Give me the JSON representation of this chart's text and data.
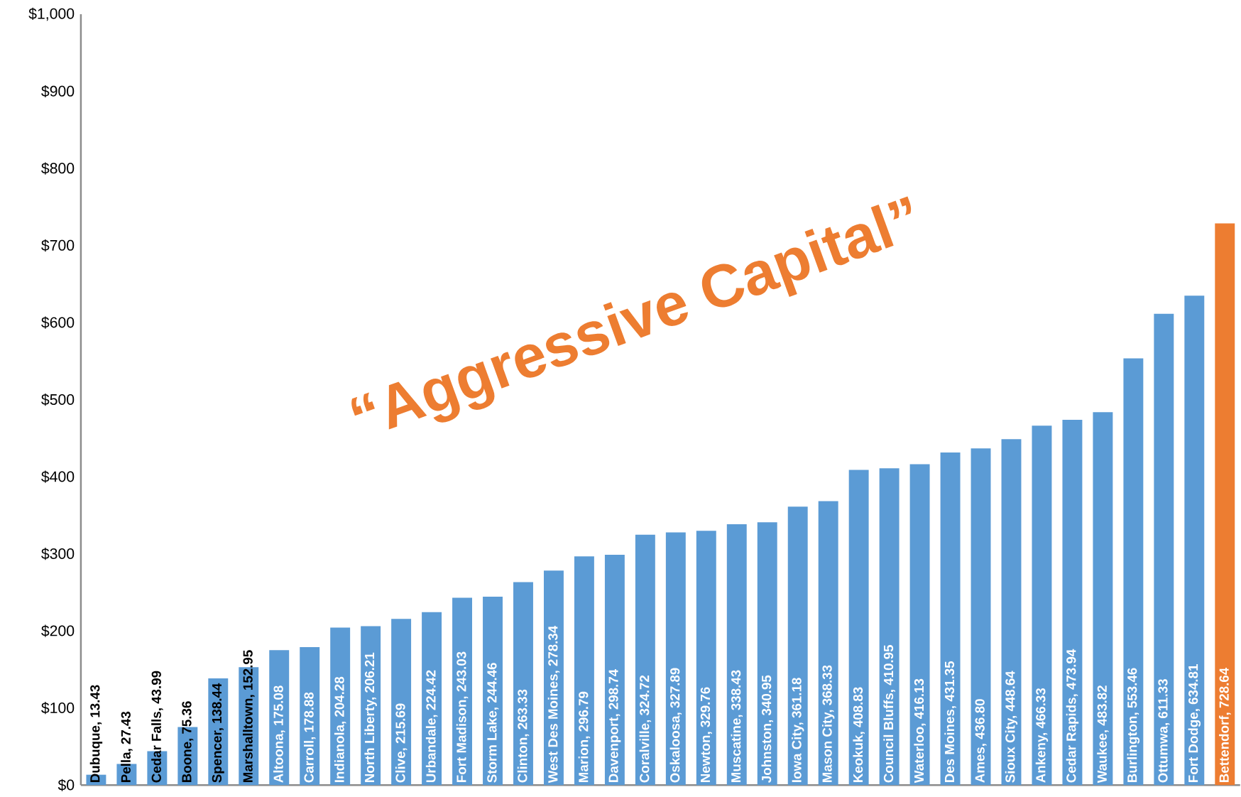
{
  "chart_data": {
    "type": "bar",
    "categories": [
      null,
      null,
      null,
      null,
      null,
      null,
      null,
      null,
      null,
      null,
      null,
      null,
      null,
      null,
      null,
      null,
      null,
      null,
      null,
      null,
      null,
      null,
      null,
      null,
      null,
      null,
      null,
      null,
      null,
      null,
      null,
      null,
      null,
      null,
      null,
      null,
      null,
      null
    ],
    "value_labels": [
      "Dubuque, 13.43",
      "Pella, 27.43",
      "Cedar Falls, 43.99",
      "Boone, 75.36",
      "Spencer, 138.44",
      "Marshalltown, 152.95",
      "Altoona, 175.08",
      "Carroll, 178.88",
      "Indianola, 204.28",
      "North Liberty, 206.21",
      "Clive, 215.69",
      "Urbandale, 224.42",
      "Fort Madison, 243.03",
      "Storm Lake, 244.46",
      "Clinton, 263.33",
      "West Des Moines, 278.34",
      "Marion, 296.79",
      "Davenport, 298.74",
      "Coralville, 324.72",
      "Oskaloosa, 327.89",
      "Newton, 329.76",
      "Muscatine, 338.43",
      "Johnston, 340.95",
      "Iowa City, 361.18",
      "Mason City, 368.33",
      "Keokuk, 408.83",
      "Council Bluffs, 410.95",
      "Waterloo, 416.13",
      "Des Moines, 431.35",
      "Ames, 436.80",
      "Sioux City, 448.64",
      "Ankeny, 466.33",
      "Cedar Rapids, 473.94",
      "Waukee, 483.82",
      "Burlington, 553.46",
      "Ottumwa, 611.33",
      "Fort Dodge, 634.81",
      "Bettendorf, 728.64"
    ],
    "values": [
      13.43,
      27.43,
      43.99,
      75.36,
      138.44,
      152.95,
      175.08,
      178.88,
      204.28,
      206.21,
      215.69,
      224.42,
      243.03,
      244.46,
      263.33,
      278.34,
      296.79,
      298.74,
      324.72,
      327.89,
      329.76,
      338.43,
      340.95,
      361.18,
      368.33,
      408.83,
      410.95,
      416.13,
      431.35,
      436.8,
      448.64,
      466.33,
      473.94,
      483.82,
      553.46,
      611.33,
      634.81,
      728.64
    ],
    "colors": [
      "#5b9bd5",
      "#5b9bd5",
      "#5b9bd5",
      "#5b9bd5",
      "#5b9bd5",
      "#5b9bd5",
      "#5b9bd5",
      "#5b9bd5",
      "#5b9bd5",
      "#5b9bd5",
      "#5b9bd5",
      "#5b9bd5",
      "#5b9bd5",
      "#5b9bd5",
      "#5b9bd5",
      "#5b9bd5",
      "#5b9bd5",
      "#5b9bd5",
      "#5b9bd5",
      "#5b9bd5",
      "#5b9bd5",
      "#5b9bd5",
      "#5b9bd5",
      "#5b9bd5",
      "#5b9bd5",
      "#5b9bd5",
      "#5b9bd5",
      "#5b9bd5",
      "#5b9bd5",
      "#5b9bd5",
      "#5b9bd5",
      "#5b9bd5",
      "#5b9bd5",
      "#5b9bd5",
      "#5b9bd5",
      "#5b9bd5",
      "#5b9bd5",
      "#ed7d31"
    ],
    "ylim": [
      0,
      1000
    ],
    "yticks": [
      {
        "value": 0,
        "label": "$0"
      },
      {
        "value": 100,
        "label": "$100"
      },
      {
        "value": 200,
        "label": "$200"
      },
      {
        "value": 300,
        "label": "$300"
      },
      {
        "value": 400,
        "label": "$400"
      },
      {
        "value": 500,
        "label": "$500"
      },
      {
        "value": 600,
        "label": "$600"
      },
      {
        "value": 700,
        "label": "$700"
      },
      {
        "value": 800,
        "label": "$800"
      },
      {
        "value": 900,
        "label": "$900"
      },
      {
        "value": 1000,
        "label": "$1,000"
      }
    ],
    "annotations": [
      "“Aggressive Capital”"
    ]
  }
}
